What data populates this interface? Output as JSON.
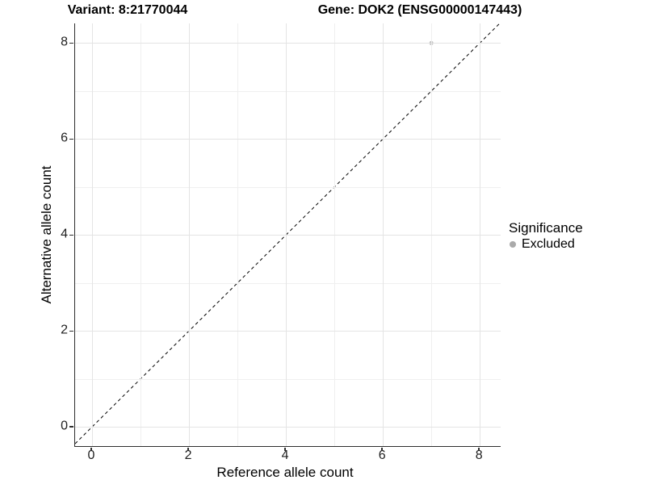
{
  "figure": {
    "title_left": "Variant: 8:21770044",
    "title_right": "Gene: DOK2 (ENSG00000147443)"
  },
  "chart_data": {
    "type": "scatter",
    "title": "Variant: 8:21770044 — Gene: DOK2 (ENSG00000147443)",
    "xlabel": "Reference allele count",
    "ylabel": "Alternative allele count",
    "xlim": [
      -0.35,
      8.43
    ],
    "ylim": [
      -0.4,
      8.41
    ],
    "x_major_ticks": [
      0,
      2,
      4,
      6,
      8
    ],
    "y_major_ticks": [
      0,
      2,
      4,
      6,
      8
    ],
    "x_minor_gridlines": [
      1,
      3,
      5,
      7
    ],
    "y_minor_gridlines": [
      1,
      3,
      5,
      7
    ],
    "grid": true,
    "points": [
      {
        "x": 7,
        "y": 8,
        "series": "Excluded"
      }
    ],
    "reference_line": {
      "type": "abline",
      "slope": 1,
      "intercept": 0,
      "linestyle": "dashed",
      "color": "#000000"
    },
    "legend": {
      "title": "Significance",
      "position": "right",
      "items": [
        {
          "label": "Excluded",
          "color": "#aaaaaa",
          "marker": "circle"
        }
      ]
    },
    "colors": {
      "point": "#bdbdbd",
      "grid_major": "#e4e4e4",
      "grid_minor": "#efefef",
      "axis_line": "#2f2f2f",
      "tick_label": "#1f1f1f"
    }
  }
}
